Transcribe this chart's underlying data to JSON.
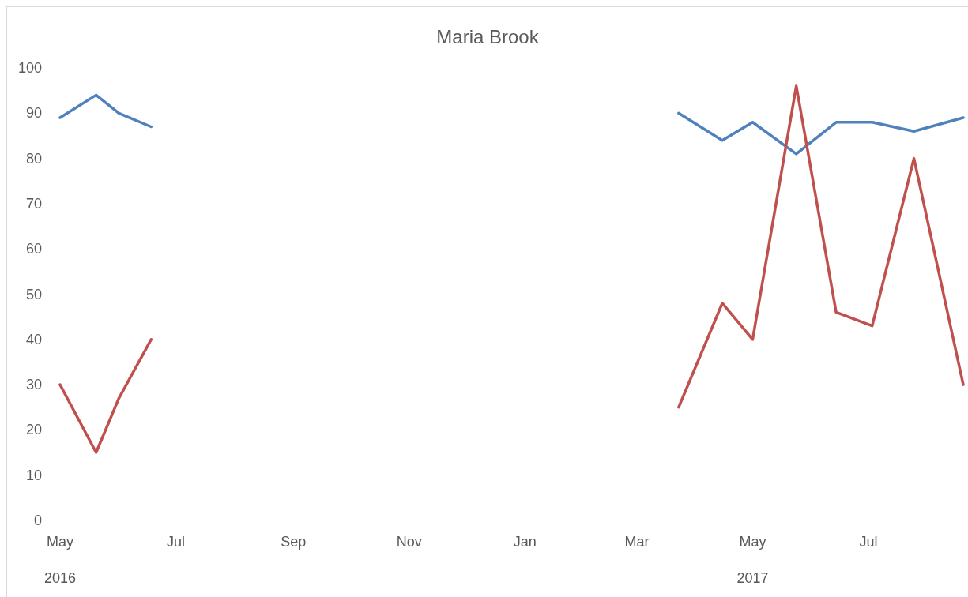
{
  "chart_data": {
    "type": "line",
    "title": "Maria Brook",
    "x": [
      "2016-05-01",
      "2016-05-20",
      "2016-06-01",
      "2016-06-18",
      "2016-11-01",
      "2017-03-23",
      "2017-04-15",
      "2017-05-01",
      "2017-05-24",
      "2017-06-14",
      "2017-07-03",
      "2017-07-25",
      "2017-08-20"
    ],
    "series": [
      {
        "color": "#4f81bd",
        "values": [
          89,
          94,
          90,
          87,
          null,
          90,
          84,
          88,
          81,
          88,
          88,
          86,
          89
        ]
      },
      {
        "color": "#c0504d",
        "values": [
          30,
          15,
          27,
          40,
          null,
          25,
          48,
          40,
          96,
          46,
          43,
          80,
          30
        ]
      }
    ],
    "xlim": [
      "2016-05-01",
      "2017-08-20"
    ],
    "xticks": [
      {
        "value": "2016-05-01",
        "label": "May"
      },
      {
        "value": "2016-07-01",
        "label": "Jul"
      },
      {
        "value": "2016-09-01",
        "label": "Sep"
      },
      {
        "value": "2016-11-01",
        "label": "Nov"
      },
      {
        "value": "2017-01-01",
        "label": "Jan"
      },
      {
        "value": "2017-03-01",
        "label": "Mar"
      },
      {
        "value": "2017-05-01",
        "label": "May"
      },
      {
        "value": "2017-07-01",
        "label": "Jul"
      }
    ],
    "x2lim": [
      "2016-05-01",
      "2017-08-20"
    ],
    "x2ticks": [
      {
        "value": "2016-05-01",
        "label": "2016"
      },
      {
        "value": "2017-05-01",
        "label": "2017"
      }
    ],
    "ylim": [
      0,
      100
    ],
    "yticks": [
      0,
      10,
      20,
      30,
      40,
      50,
      60,
      70,
      80,
      90,
      100
    ],
    "grid": false,
    "marker": "none",
    "line_style": "solid"
  }
}
